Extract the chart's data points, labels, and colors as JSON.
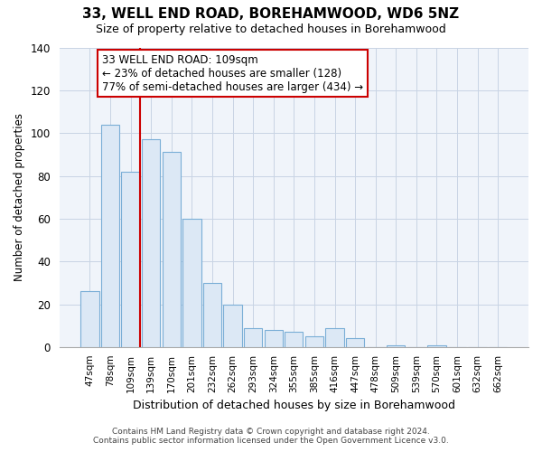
{
  "title": "33, WELL END ROAD, BOREHAMWOOD, WD6 5NZ",
  "subtitle": "Size of property relative to detached houses in Borehamwood",
  "xlabel": "Distribution of detached houses by size in Borehamwood",
  "ylabel": "Number of detached properties",
  "bar_labels": [
    "47sqm",
    "78sqm",
    "109sqm",
    "139sqm",
    "170sqm",
    "201sqm",
    "232sqm",
    "262sqm",
    "293sqm",
    "324sqm",
    "355sqm",
    "385sqm",
    "416sqm",
    "447sqm",
    "478sqm",
    "509sqm",
    "539sqm",
    "570sqm",
    "601sqm",
    "632sqm",
    "662sqm"
  ],
  "bar_values": [
    26,
    104,
    82,
    97,
    91,
    60,
    30,
    20,
    9,
    8,
    7,
    5,
    9,
    4,
    0,
    1,
    0,
    1,
    0,
    0,
    0
  ],
  "bar_facecolor": "#dce8f5",
  "bar_edgecolor": "#7aaed6",
  "vline_index": 2,
  "vline_color": "#cc0000",
  "annotation_text": "33 WELL END ROAD: 109sqm\n← 23% of detached houses are smaller (128)\n77% of semi-detached houses are larger (434) →",
  "annotation_box_facecolor": "#ffffff",
  "annotation_border_color": "#cc0000",
  "ylim": [
    0,
    140
  ],
  "yticks": [
    0,
    20,
    40,
    60,
    80,
    100,
    120,
    140
  ],
  "footer_text": "Contains HM Land Registry data © Crown copyright and database right 2024.\nContains public sector information licensed under the Open Government Licence v3.0.",
  "background_color": "#ffffff",
  "plot_bg_color": "#f0f4fa",
  "grid_color": "#c8d4e4"
}
